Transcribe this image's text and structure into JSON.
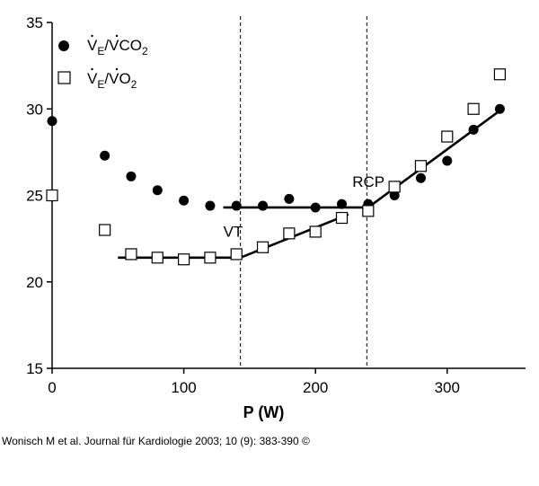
{
  "chart_data": {
    "type": "scatter",
    "xlabel": "P (W)",
    "ylabel": "",
    "xlim": [
      0,
      360
    ],
    "ylim": [
      15,
      35
    ],
    "x_ticks": [
      0,
      100,
      200,
      300
    ],
    "y_ticks": [
      15,
      20,
      25,
      30,
      35
    ],
    "grid": false,
    "legend_position": "top-left",
    "series": [
      {
        "name": "V̇E/V̇CO2",
        "name_parts": {
          "main": "V",
          "sub1": "E",
          "mid": "/",
          "main2": "V",
          "tail": "CO",
          "sub2": "2"
        },
        "marker": "filled-circle",
        "x": [
          0,
          40,
          60,
          80,
          100,
          120,
          140,
          160,
          180,
          200,
          220,
          240,
          260,
          280,
          300,
          320,
          340
        ],
        "y": [
          29.3,
          27.3,
          26.1,
          25.3,
          24.7,
          24.4,
          24.4,
          24.4,
          24.8,
          24.3,
          24.5,
          24.5,
          25.0,
          26.0,
          27.0,
          28.8,
          30.0
        ]
      },
      {
        "name": "V̇E/V̇O2",
        "name_parts": {
          "main": "V",
          "sub1": "E",
          "mid": "/",
          "main2": "V",
          "tail": "O",
          "sub2": "2"
        },
        "marker": "open-square",
        "x": [
          0,
          40,
          60,
          80,
          100,
          120,
          140,
          160,
          180,
          200,
          220,
          240,
          260,
          280,
          300,
          320,
          340
        ],
        "y": [
          25.0,
          23.0,
          21.6,
          21.4,
          21.3,
          21.4,
          21.6,
          22.0,
          22.8,
          22.9,
          23.7,
          24.1,
          25.5,
          26.7,
          28.4,
          30.0,
          32.0
        ]
      }
    ],
    "fit_lines": [
      {
        "x": [
          130,
          240
        ],
        "y": [
          24.3,
          24.3
        ]
      },
      {
        "x": [
          240,
          340
        ],
        "y": [
          24.3,
          29.9
        ]
      },
      {
        "x": [
          50,
          143
        ],
        "y": [
          21.4,
          21.4
        ]
      },
      {
        "x": [
          143,
          225
        ],
        "y": [
          21.4,
          23.9
        ]
      }
    ],
    "vertical_lines": [
      {
        "x": 143,
        "label": "VT"
      },
      {
        "x": 239,
        "label": "RCP"
      }
    ],
    "annotations": [
      {
        "text": "VT",
        "x": 130,
        "y": 22.6
      },
      {
        "text": "RCP",
        "x": 228,
        "y": 25.5
      }
    ]
  },
  "citation": "Wonisch M et al. Journal für Kardiologie 2003; 10 (9): 383-390 ©"
}
